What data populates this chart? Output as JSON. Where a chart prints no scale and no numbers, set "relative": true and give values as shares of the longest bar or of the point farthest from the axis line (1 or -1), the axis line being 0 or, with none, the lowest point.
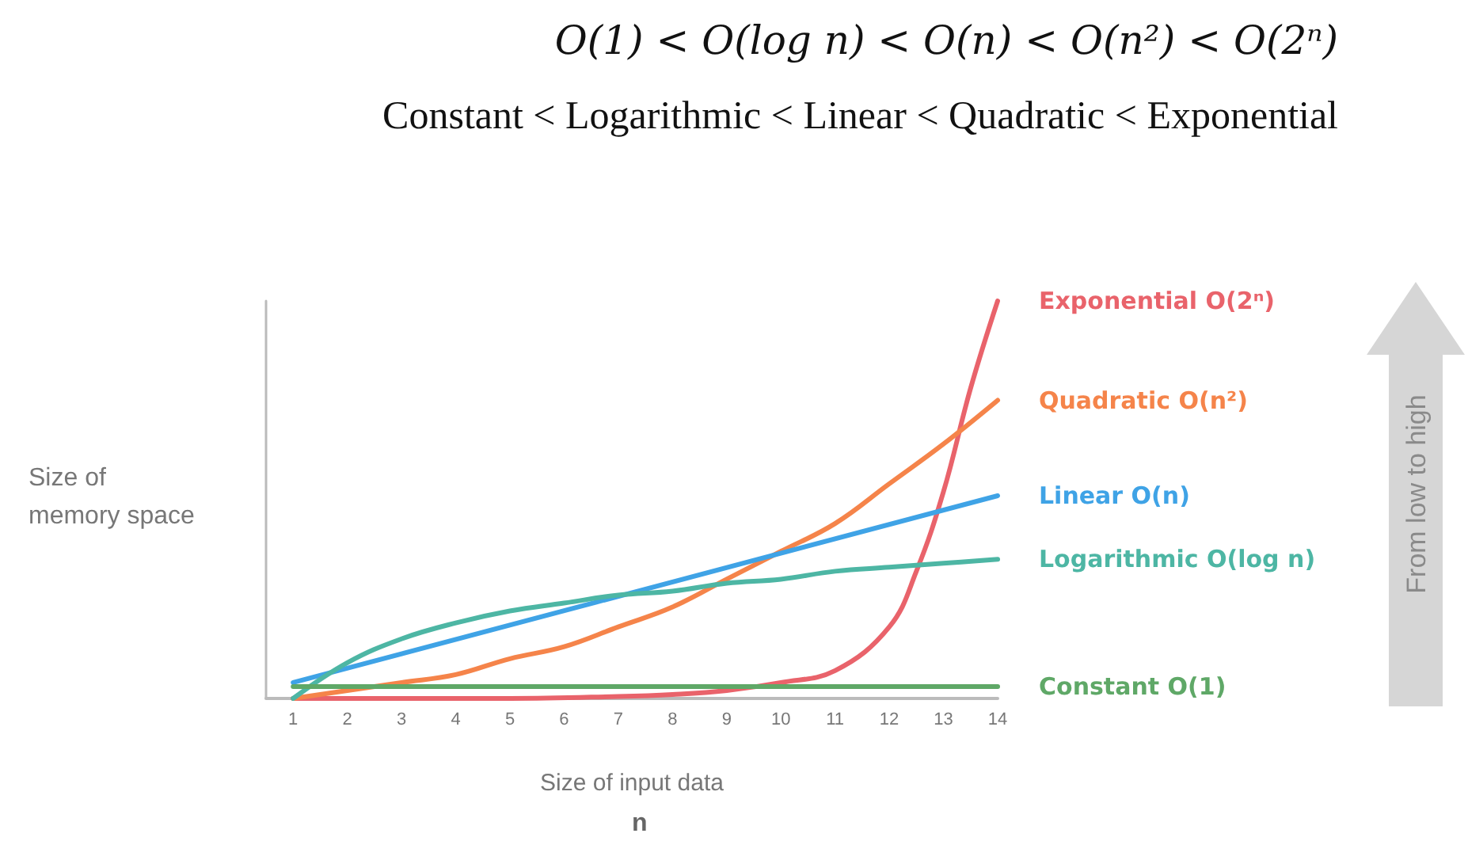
{
  "chart_data": {
    "type": "line",
    "title": "O(1) < O(log n) < O(n) < O(n²) < O(2ⁿ)",
    "subtitle": "Constant < Logarithmic < Linear < Quadratic < Exponential",
    "xlabel": "Size of input data",
    "ylabel": "Size of memory space",
    "annotations": [
      "n",
      "From low to high"
    ],
    "relative": true,
    "xlim": [
      0.5,
      14
    ],
    "xticks": [
      1,
      2,
      3,
      4,
      5,
      6,
      7,
      8,
      9,
      10,
      11,
      12,
      13,
      14
    ],
    "grid": false,
    "legend": false,
    "marker": "none",
    "line_style": "solid",
    "tick_labels": "x",
    "series": [
      {
        "name": "Exponential O(2ⁿ)",
        "color": "#e9636b",
        "x": [
          1,
          3,
          5,
          7,
          8,
          9,
          10,
          11,
          12,
          12.5,
          13,
          13.5,
          14
        ],
        "values": [
          0,
          0,
          0,
          0.005,
          0.01,
          0.02,
          0.04,
          0.07,
          0.18,
          0.32,
          0.52,
          0.78,
          1
        ]
      },
      {
        "name": "Quadratic O(n²)",
        "color": "#f5844a",
        "x": [
          1,
          2,
          3,
          4,
          5,
          6,
          7,
          8,
          9,
          10,
          11,
          12,
          13,
          14
        ],
        "values": [
          0,
          0.02,
          0.04,
          0.06,
          0.1,
          0.13,
          0.18,
          0.23,
          0.3,
          0.37,
          0.44,
          0.54,
          0.64,
          0.75
        ]
      },
      {
        "name": "Linear O(n)",
        "color": "#3fa3e6",
        "x": [
          1,
          14
        ],
        "values": [
          0.04,
          0.51
        ]
      },
      {
        "name": "Logarithmic O(log n)",
        "color": "#4db6a4",
        "x": [
          1,
          2,
          3,
          4,
          5,
          6,
          7,
          8,
          9,
          10,
          11,
          12,
          13,
          14
        ],
        "values": [
          0,
          0.09,
          0.15,
          0.19,
          0.22,
          0.24,
          0.26,
          0.27,
          0.29,
          0.3,
          0.32,
          0.33,
          0.34,
          0.35
        ]
      },
      {
        "name": "Constant O(1)",
        "color": "#5fa867",
        "x": [
          1,
          14
        ],
        "values": [
          0.03,
          0.03
        ]
      }
    ]
  }
}
